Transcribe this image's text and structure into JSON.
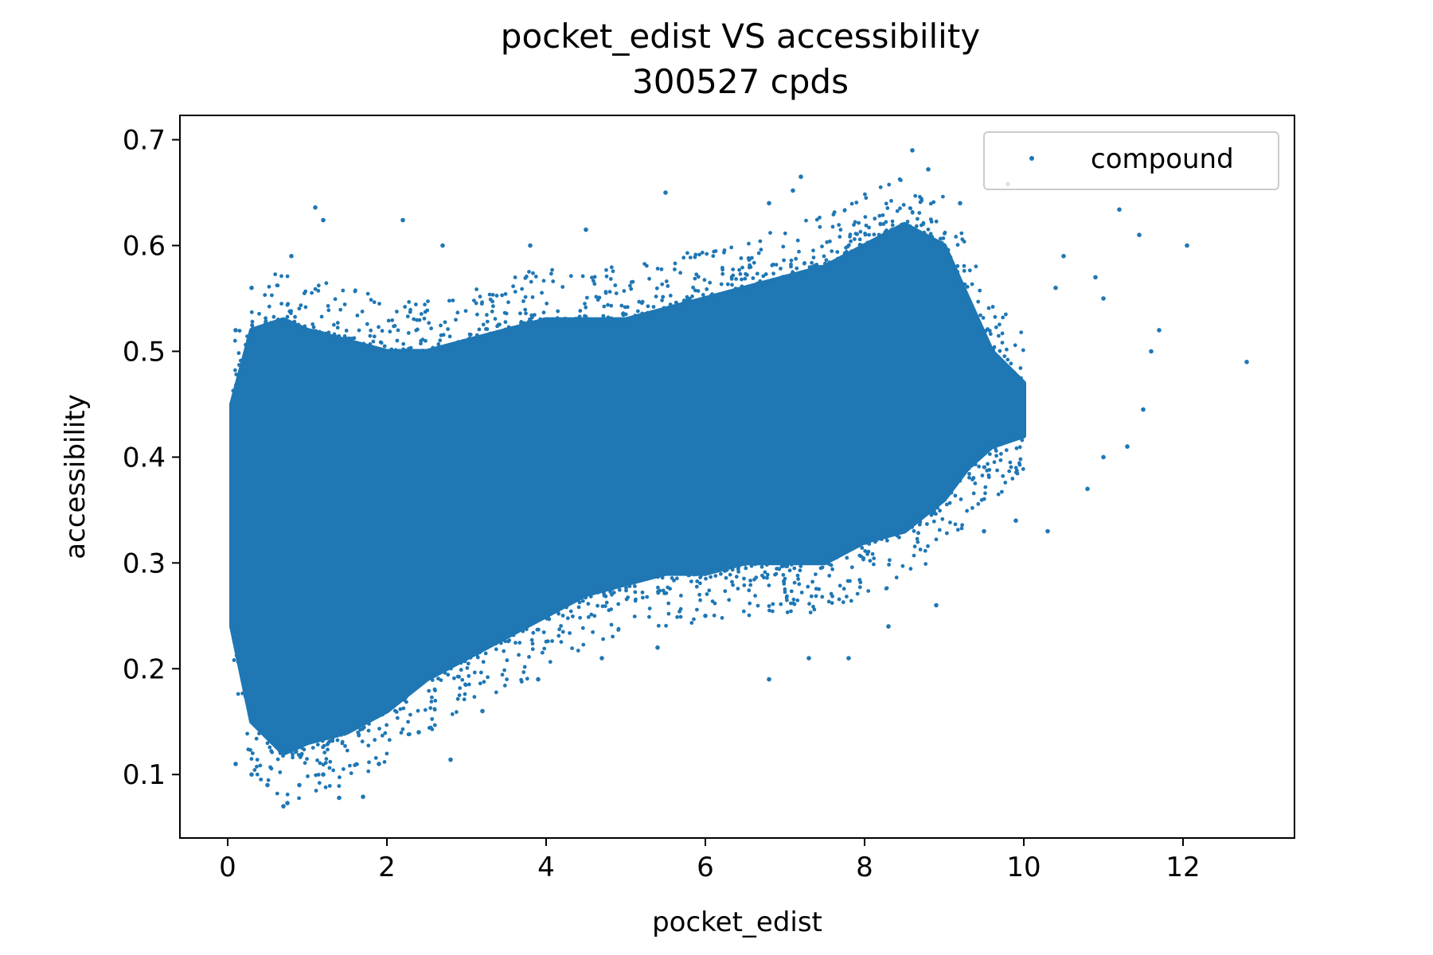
{
  "chart_data": {
    "type": "scatter",
    "title": "pocket_edist VS accessibility",
    "subtitle": "300527 cpds",
    "xlabel": "pocket_edist",
    "ylabel": "accessibility",
    "xlim": [
      -0.6,
      13.4
    ],
    "ylim": [
      0.04,
      0.723
    ],
    "xticks": [
      0,
      2,
      4,
      6,
      8,
      10,
      12
    ],
    "yticks": [
      0.1,
      0.2,
      0.3,
      0.4,
      0.5,
      0.6,
      0.7
    ],
    "grid": false,
    "legend_position": "top-right",
    "series": [
      {
        "name": "compound",
        "color": "#1f77b4",
        "count": 300527,
        "envelope": {
          "x": [
            0.05,
            0.3,
            0.7,
            1.0,
            1.5,
            2.0,
            2.5,
            3.0,
            3.5,
            4.0,
            4.5,
            5.0,
            5.5,
            6.0,
            6.5,
            7.0,
            7.5,
            8.0,
            8.5,
            9.0,
            9.3,
            9.6,
            10.0
          ],
          "y_low": [
            0.24,
            0.15,
            0.12,
            0.13,
            0.14,
            0.16,
            0.19,
            0.21,
            0.23,
            0.25,
            0.27,
            0.28,
            0.29,
            0.29,
            0.3,
            0.3,
            0.3,
            0.32,
            0.33,
            0.36,
            0.39,
            0.41,
            0.42
          ],
          "y_high": [
            0.45,
            0.52,
            0.53,
            0.52,
            0.51,
            0.5,
            0.5,
            0.51,
            0.52,
            0.53,
            0.53,
            0.53,
            0.54,
            0.55,
            0.56,
            0.57,
            0.58,
            0.6,
            0.62,
            0.6,
            0.55,
            0.5,
            0.47
          ]
        },
        "sample_points": [
          [
            0.7,
            0.07
          ],
          [
            0.75,
            0.073
          ],
          [
            1.4,
            0.078
          ],
          [
            1.7,
            0.079
          ],
          [
            0.1,
            0.11
          ],
          [
            0.3,
            0.1
          ],
          [
            0.5,
            0.09
          ],
          [
            0.9,
            0.09
          ],
          [
            1.2,
            0.1
          ],
          [
            1.9,
            0.11
          ],
          [
            2.8,
            0.114
          ],
          [
            2.4,
            0.14
          ],
          [
            3.2,
            0.16
          ],
          [
            3.9,
            0.19
          ],
          [
            4.7,
            0.21
          ],
          [
            5.4,
            0.22
          ],
          [
            6.0,
            0.25
          ],
          [
            6.8,
            0.19
          ],
          [
            7.3,
            0.21
          ],
          [
            7.8,
            0.21
          ],
          [
            8.3,
            0.24
          ],
          [
            8.9,
            0.26
          ],
          [
            9.5,
            0.33
          ],
          [
            9.9,
            0.34
          ],
          [
            10.3,
            0.33
          ],
          [
            10.8,
            0.37
          ],
          [
            11.0,
            0.4
          ],
          [
            11.3,
            0.41
          ],
          [
            11.5,
            0.445
          ],
          [
            11.7,
            0.52
          ],
          [
            12.05,
            0.6
          ],
          [
            12.8,
            0.49
          ],
          [
            11.2,
            0.634
          ],
          [
            11.45,
            0.61
          ],
          [
            9.8,
            0.658
          ],
          [
            9.2,
            0.64
          ],
          [
            8.6,
            0.69
          ],
          [
            8.8,
            0.672
          ],
          [
            7.2,
            0.665
          ],
          [
            7.1,
            0.652
          ],
          [
            6.8,
            0.64
          ],
          [
            5.5,
            0.65
          ],
          [
            4.5,
            0.615
          ],
          [
            3.8,
            0.6
          ],
          [
            2.2,
            0.624
          ],
          [
            1.1,
            0.636
          ],
          [
            1.2,
            0.624
          ],
          [
            0.8,
            0.59
          ],
          [
            0.3,
            0.56
          ],
          [
            0.1,
            0.52
          ],
          [
            2.7,
            0.6
          ],
          [
            10.4,
            0.56
          ],
          [
            11.0,
            0.55
          ],
          [
            10.5,
            0.59
          ],
          [
            10.9,
            0.57
          ],
          [
            11.6,
            0.5
          ]
        ]
      }
    ]
  }
}
